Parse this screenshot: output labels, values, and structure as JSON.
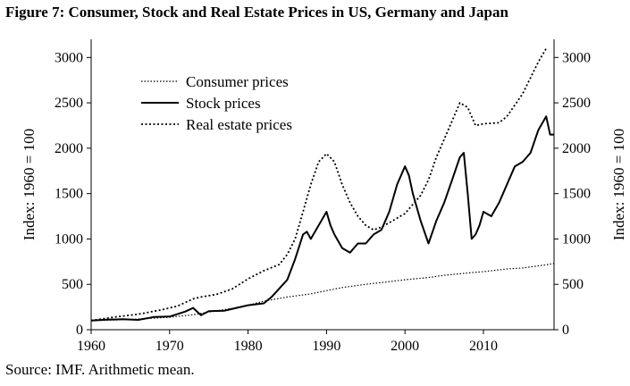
{
  "figure": {
    "title": "Figure 7: Consumer, Stock and Real Estate Prices in US, Germany and Japan",
    "source": "Source: IMF. Arithmetic mean."
  },
  "chart_data": {
    "type": "line",
    "title": "Figure 7: Consumer, Stock and Real Estate Prices in US, Germany and Japan",
    "xlabel": "",
    "ylabel_left": "Index: 1960 = 100",
    "ylabel_right": "Index: 1960 = 100",
    "xlim": [
      1960,
      2019
    ],
    "ylim": [
      0,
      3200
    ],
    "xticks": [
      1960,
      1970,
      1980,
      1990,
      2000,
      2010
    ],
    "yticks": [
      0,
      500,
      1000,
      1500,
      2000,
      2500,
      3000
    ],
    "grid": false,
    "legend_position": "top-left",
    "series": [
      {
        "name": "Consumer prices",
        "style": "dotted-fine",
        "color": "#000000",
        "x": [
          1960,
          1965,
          1970,
          1973,
          1975,
          1978,
          1980,
          1982,
          1985,
          1988,
          1990,
          1992,
          1995,
          1998,
          2000,
          2003,
          2005,
          2008,
          2010,
          2013,
          2015,
          2018,
          2019
        ],
        "y": [
          100,
          112,
          138,
          165,
          195,
          235,
          270,
          315,
          360,
          395,
          430,
          465,
          500,
          530,
          550,
          575,
          600,
          625,
          640,
          670,
          680,
          715,
          730
        ]
      },
      {
        "name": "Stock prices",
        "style": "solid",
        "color": "#000000",
        "x": [
          1960,
          1962,
          1964,
          1966,
          1968,
          1970,
          1972,
          1973,
          1974,
          1975,
          1977,
          1980,
          1982,
          1983,
          1985,
          1986,
          1987,
          1987.5,
          1988,
          1989,
          1990,
          1990.5,
          1991,
          1992,
          1993,
          1994,
          1995,
          1996,
          1997,
          1998,
          1999,
          2000,
          2000.5,
          2001,
          2002,
          2003,
          2004,
          2005,
          2006,
          2007,
          2007.5,
          2008,
          2008.5,
          2009,
          2009.5,
          2010,
          2011,
          2012,
          2013,
          2014,
          2015,
          2016,
          2017,
          2018,
          2018.5,
          2019
        ],
        "y": [
          100,
          110,
          115,
          108,
          140,
          145,
          200,
          240,
          160,
          205,
          210,
          270,
          290,
          360,
          550,
          780,
          1050,
          1080,
          1000,
          1150,
          1300,
          1150,
          1050,
          900,
          850,
          950,
          950,
          1050,
          1100,
          1300,
          1600,
          1800,
          1700,
          1500,
          1200,
          950,
          1200,
          1400,
          1650,
          1900,
          1950,
          1500,
          1000,
          1050,
          1150,
          1300,
          1250,
          1400,
          1600,
          1800,
          1850,
          1950,
          2200,
          2350,
          2150,
          2150
        ]
      },
      {
        "name": "Real estate prices",
        "style": "dotted-bold",
        "color": "#000000",
        "x": [
          1960,
          1963,
          1966,
          1969,
          1971,
          1973,
          1974,
          1976,
          1978,
          1980,
          1982,
          1984,
          1985,
          1986,
          1987,
          1988,
          1989,
          1990,
          1991,
          1992,
          1993,
          1994,
          1995,
          1996,
          1997,
          1998,
          2000,
          2002,
          2003,
          2004,
          2005,
          2006,
          2007,
          2008,
          2009,
          2010,
          2012,
          2013,
          2015,
          2017,
          2018
        ],
        "y": [
          100,
          140,
          170,
          220,
          260,
          340,
          360,
          390,
          450,
          560,
          650,
          720,
          830,
          1000,
          1300,
          1600,
          1850,
          1940,
          1850,
          1600,
          1400,
          1250,
          1150,
          1100,
          1130,
          1180,
          1280,
          1480,
          1650,
          1900,
          2100,
          2300,
          2500,
          2450,
          2250,
          2270,
          2280,
          2350,
          2600,
          2950,
          3100
        ]
      }
    ]
  }
}
